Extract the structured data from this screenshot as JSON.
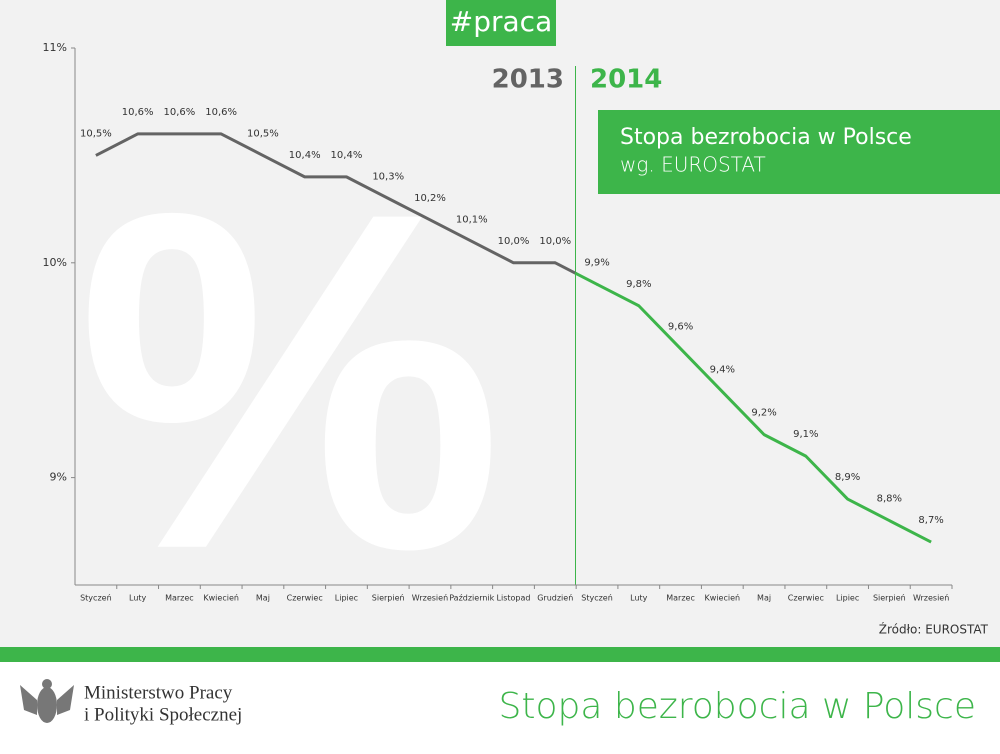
{
  "tag": "#praca",
  "chart_data": {
    "type": "line",
    "title": "Stopa bezrobocia w Polsce",
    "subtitle": "wg. EUROSTAT",
    "source": "Źródło: EUROSTAT",
    "categories": [
      "Styczeń",
      "Luty",
      "Marzec",
      "Kwiecień",
      "Maj",
      "Czerwiec",
      "Lipiec",
      "Sierpień",
      "Wrzesień",
      "Październik",
      "Listopad",
      "Grudzień",
      "Styczeń",
      "Luty",
      "Marzec",
      "Kwiecień",
      "Maj",
      "Czerwiec",
      "Lipiec",
      "Sierpień",
      "Wrzesień"
    ],
    "series": [
      {
        "name": "2013",
        "color": "#646464",
        "values": [
          10.5,
          10.6,
          10.6,
          10.6,
          10.5,
          10.4,
          10.4,
          10.3,
          10.2,
          10.1,
          10.0,
          10.0,
          null,
          null,
          null,
          null,
          null,
          null,
          null,
          null,
          null
        ],
        "value_labels": [
          "10,5%",
          "10,6%",
          "10,6%",
          "10,6%",
          "10,5%",
          "10,4%",
          "10,4%",
          "10,3%",
          "10,2%",
          "10,1%",
          "10,0%",
          "10,0%",
          null,
          null,
          null,
          null,
          null,
          null,
          null,
          null,
          null
        ]
      },
      {
        "name": "2014",
        "color": "#3db54a",
        "values": [
          null,
          null,
          null,
          null,
          null,
          null,
          null,
          null,
          null,
          null,
          null,
          null,
          9.9,
          9.8,
          9.6,
          9.4,
          9.2,
          9.1,
          8.9,
          8.8,
          8.7
        ],
        "value_labels": [
          null,
          null,
          null,
          null,
          null,
          null,
          null,
          null,
          null,
          null,
          null,
          null,
          "9,9%",
          "9,8%",
          "9,6%",
          "9,4%",
          "9,2%",
          "9,1%",
          "8,9%",
          "8,8%",
          "8,7%"
        ]
      }
    ],
    "ylim": [
      8.5,
      11
    ],
    "yticks": [
      {
        "value": 9,
        "label": "9%"
      },
      {
        "value": 10,
        "label": "10%"
      },
      {
        "value": 11,
        "label": "11%"
      }
    ]
  },
  "footer": {
    "ministry_line1": "Ministerstwo Pracy",
    "ministry_line2": "i Polityki Społecznej",
    "title": "Stopa bezrobocia w Polsce"
  }
}
